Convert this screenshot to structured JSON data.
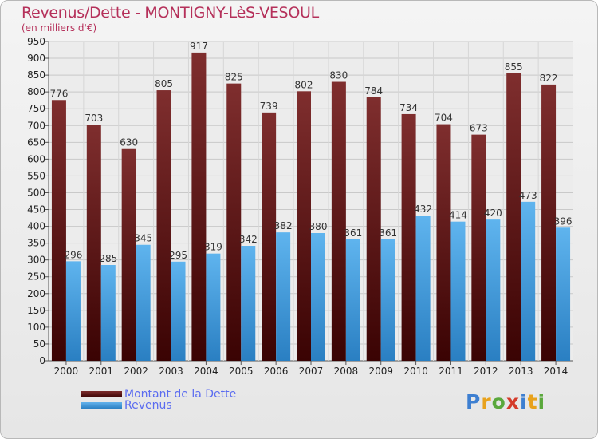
{
  "chart_data": {
    "type": "bar",
    "title": "Revenus/Dette - MONTIGNY-LèS-VESOUL",
    "subtitle": "(en milliers d'€)",
    "categories": [
      "2000",
      "2001",
      "2002",
      "2003",
      "2004",
      "2005",
      "2006",
      "2007",
      "2008",
      "2009",
      "2010",
      "2011",
      "2012",
      "2013",
      "2014"
    ],
    "series": [
      {
        "name": "Montant de la Dette",
        "color": "#6e1a1a",
        "values": [
          776,
          703,
          630,
          805,
          917,
          825,
          739,
          802,
          830,
          784,
          734,
          704,
          673,
          855,
          822
        ]
      },
      {
        "name": "Revenus",
        "color": "#4ea6e6",
        "values": [
          296,
          285,
          345,
          295,
          319,
          342,
          382,
          380,
          361,
          361,
          432,
          414,
          420,
          473,
          396
        ]
      }
    ],
    "ylim": [
      0,
      950
    ],
    "ytick_step": 50,
    "grid": true,
    "legend_position": "bottom-left"
  },
  "logo": {
    "p": "P",
    "r": "r",
    "o": "o",
    "x": "x",
    "i": "i",
    "t": "t",
    "i2": "i"
  }
}
